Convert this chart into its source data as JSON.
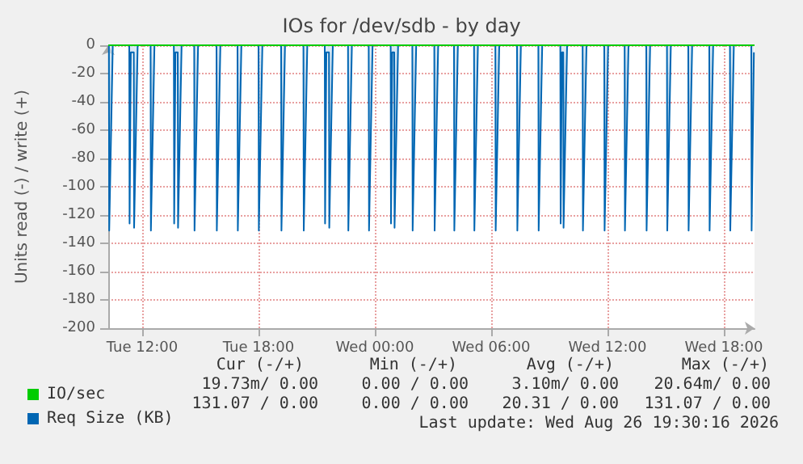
{
  "chart_data": {
    "type": "area",
    "title": "IOs for /dev/sdb - by day",
    "ylabel": "Units read (-) / write (+)",
    "xlim": [
      "2026-08-25T10:15",
      "2026-08-26T19:35"
    ],
    "xticks": [
      {
        "value": "2026-08-25T12:00",
        "label": "Tue 12:00"
      },
      {
        "value": "2026-08-25T18:00",
        "label": "Tue 18:00"
      },
      {
        "value": "2026-08-26T00:00",
        "label": "Wed 00:00"
      },
      {
        "value": "2026-08-26T06:00",
        "label": "Wed 06:00"
      },
      {
        "value": "2026-08-26T12:00",
        "label": "Wed 12:00"
      },
      {
        "value": "2026-08-26T18:00",
        "label": "Wed 18:00"
      }
    ],
    "ylim": [
      -200,
      0
    ],
    "yticks": [
      -200,
      -180,
      -160,
      -140,
      -120,
      -100,
      -80,
      -60,
      -40,
      -20,
      0
    ],
    "grid": true,
    "legend": "bottom left",
    "series": [
      {
        "name": "Req Size (KB)",
        "color": "#0066b3",
        "x": [
          "2026-08-25T10:17",
          "2026-08-25T10:18",
          "2026-08-25T10:29",
          "2026-08-25T11:20",
          "2026-08-25T11:21",
          "2026-08-25T11:25",
          "2026-08-25T11:34",
          "2026-08-25T11:35",
          "2026-08-25T11:46",
          "2026-08-25T12:26",
          "2026-08-25T12:27",
          "2026-08-25T12:38",
          "2026-08-25T13:38",
          "2026-08-25T13:39",
          "2026-08-25T13:43",
          "2026-08-25T13:50",
          "2026-08-25T13:51",
          "2026-08-25T14:02",
          "2026-08-25T14:41",
          "2026-08-25T14:42",
          "2026-08-25T14:53",
          "2026-08-25T15:50",
          "2026-08-25T15:51",
          "2026-08-25T16:02",
          "2026-08-25T16:55",
          "2026-08-25T16:56",
          "2026-08-25T17:07",
          "2026-08-25T18:00",
          "2026-08-25T18:01",
          "2026-08-25T18:12",
          "2026-08-25T19:10",
          "2026-08-25T19:11",
          "2026-08-25T19:22",
          "2026-08-25T20:19",
          "2026-08-25T20:20",
          "2026-08-25T20:31",
          "2026-08-25T21:25",
          "2026-08-25T21:26",
          "2026-08-25T21:30",
          "2026-08-25T21:38",
          "2026-08-25T21:39",
          "2026-08-25T21:50",
          "2026-08-25T22:37",
          "2026-08-25T22:38",
          "2026-08-25T22:49",
          "2026-08-25T23:41",
          "2026-08-25T23:42",
          "2026-08-25T23:53",
          "2026-08-26T00:49",
          "2026-08-26T00:50",
          "2026-08-26T00:54",
          "2026-08-26T01:00",
          "2026-08-26T01:01",
          "2026-08-26T01:12",
          "2026-08-26T01:56",
          "2026-08-26T01:57",
          "2026-08-26T02:08",
          "2026-08-26T03:04",
          "2026-08-26T03:05",
          "2026-08-26T03:16",
          "2026-08-26T04:05",
          "2026-08-26T04:06",
          "2026-08-26T04:17",
          "2026-08-26T05:07",
          "2026-08-26T05:08",
          "2026-08-26T05:19",
          "2026-08-26T06:13",
          "2026-08-26T06:14",
          "2026-08-26T06:25",
          "2026-08-26T07:20",
          "2026-08-26T07:21",
          "2026-08-26T07:32",
          "2026-08-26T08:26",
          "2026-08-26T08:27",
          "2026-08-26T08:38",
          "2026-08-26T09:34",
          "2026-08-26T09:35",
          "2026-08-26T09:39",
          "2026-08-26T09:43",
          "2026-08-26T09:44",
          "2026-08-26T09:55",
          "2026-08-26T10:43",
          "2026-08-26T10:44",
          "2026-08-26T10:55",
          "2026-08-26T11:50",
          "2026-08-26T11:51",
          "2026-08-26T12:02",
          "2026-08-26T12:53",
          "2026-08-26T12:54",
          "2026-08-26T13:05",
          "2026-08-26T14:00",
          "2026-08-26T14:01",
          "2026-08-26T14:12",
          "2026-08-26T15:04",
          "2026-08-26T15:05",
          "2026-08-26T15:16",
          "2026-08-26T16:10",
          "2026-08-26T16:11",
          "2026-08-26T16:22",
          "2026-08-26T17:15",
          "2026-08-26T17:16",
          "2026-08-26T17:27",
          "2026-08-26T18:19",
          "2026-08-26T18:20",
          "2026-08-26T18:31",
          "2026-08-26T19:25",
          "2026-08-26T19:26",
          "2026-08-26T19:33"
        ],
        "values": [
          0,
          -131,
          0,
          0,
          -126,
          -5,
          -5,
          -129,
          0,
          0,
          -131,
          0,
          0,
          -126,
          -5,
          -5,
          -129,
          0,
          0,
          -131,
          0,
          0,
          -131,
          0,
          0,
          -131,
          0,
          0,
          -131,
          0,
          0,
          -131,
          0,
          0,
          -131,
          0,
          0,
          -126,
          -5,
          -5,
          -129,
          0,
          0,
          -131,
          0,
          0,
          -131,
          0,
          0,
          -126,
          -5,
          -5,
          -129,
          0,
          0,
          -131,
          0,
          0,
          -131,
          0,
          0,
          -131,
          0,
          0,
          -131,
          0,
          0,
          -131,
          0,
          0,
          -131,
          0,
          0,
          -131,
          0,
          0,
          -126,
          -5,
          -5,
          -129,
          0,
          0,
          -131,
          0,
          0,
          -131,
          0,
          0,
          -131,
          0,
          0,
          -131,
          0,
          0,
          -131,
          0,
          0,
          -131,
          0,
          0,
          -131,
          0,
          0,
          -131,
          0,
          0,
          -131,
          -5
        ]
      },
      {
        "name": "IO/sec",
        "type": "line",
        "color": "#00cc00",
        "x": [
          "2026-08-25T10:15",
          "2026-08-26T19:35"
        ],
        "values": [
          0,
          0
        ]
      }
    ],
    "annotations": [
      "Cur (-/+)",
      "Min (-/+)",
      "Avg (-/+)",
      "Max (-/+)",
      "19.73m/ 0.00",
      "0.00 / 0.00",
      "3.10m/ 0.00",
      "20.64m/ 0.00",
      "131.07 / 0.00",
      "0.00 / 0.00",
      "20.31 / 0.00",
      "131.07 / 0.00",
      "Last update: Wed Aug 26 19:30:16 2026"
    ]
  }
}
